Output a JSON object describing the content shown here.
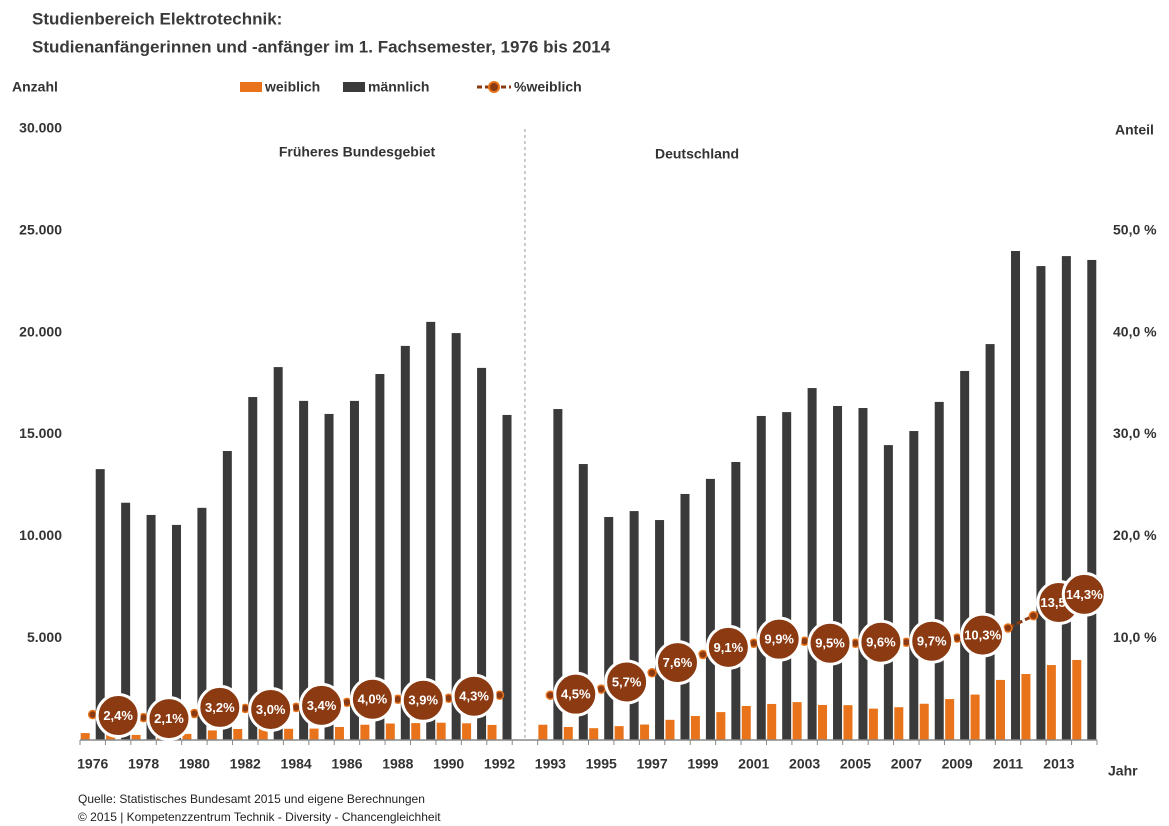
{
  "chart_data": {
    "type": "bar",
    "title": "Studienbereich Elektrotechnik:",
    "subtitle": "Studienanfängerinnen und -anfänger im 1. Fachsemester, 1976 bis 2014",
    "y_label": "Anzahl",
    "y2_label": "Anteil",
    "x_label": "Jahr",
    "annotations": [
      "Früheres Bundesgebiet",
      "Deutschland"
    ],
    "notes": [
      "Quelle: Statistisches Bundesamt 2015 und eigene Berechnungen",
      "© 2015 | Kompetenzzentrum Technik - Diversity - Chancengleichheit"
    ],
    "categories": [
      "1976",
      null,
      "1978",
      null,
      "1980",
      null,
      "1982",
      null,
      "1984",
      null,
      "1986",
      null,
      "1988",
      null,
      "1990",
      null,
      "1992",
      null,
      "1993",
      null,
      "1995",
      null,
      "1997",
      null,
      "1999",
      null,
      "2001",
      null,
      "2003",
      null,
      "2005",
      null,
      "2007",
      null,
      "2009",
      null,
      "2011",
      null,
      "2013",
      null
    ],
    "series": [
      {
        "name": "weiblich",
        "color": "#e8731a",
        "values": [
          340,
          290,
          250,
          230,
          300,
          470,
          540,
          570,
          550,
          560,
          640,
          750,
          810,
          830,
          850,
          820,
          740,
          null,
          750,
          640,
          580,
          680,
          760,
          990,
          1180,
          1370,
          1670,
          1770,
          1860,
          1720,
          1710,
          1540,
          1610,
          1780,
          2010,
          2230,
          2950,
          3240,
          3680,
          3930
        ]
      },
      {
        "name": "männlich",
        "color": "#3a3a3a",
        "values": [
          13300,
          11650,
          11050,
          10560,
          11400,
          14190,
          16840,
          18310,
          16650,
          16010,
          16650,
          17970,
          19350,
          20530,
          19980,
          18270,
          15960,
          null,
          16250,
          13550,
          10950,
          11240,
          10800,
          12080,
          12820,
          13650,
          15910,
          16100,
          17280,
          16400,
          16300,
          14480,
          15170,
          16600,
          18120,
          19440,
          24010,
          23270,
          23760,
          23570
        ]
      },
      {
        "name": "%weiblich",
        "color": "#8b3a12",
        "type": "line",
        "axis": "y2",
        "values": [
          2.5,
          2.4,
          2.2,
          2.1,
          2.6,
          3.2,
          3.1,
          3.0,
          3.2,
          3.4,
          3.7,
          4.0,
          4.0,
          3.9,
          4.1,
          4.3,
          4.4,
          null,
          4.4,
          4.5,
          5.0,
          5.7,
          6.6,
          7.6,
          8.4,
          9.1,
          9.5,
          9.9,
          9.7,
          9.5,
          9.5,
          9.6,
          9.6,
          9.7,
          10.0,
          10.3,
          11.0,
          12.2,
          13.5,
          14.3
        ],
        "value_labels": [
          null,
          "2,4%",
          null,
          "2,1%",
          null,
          "3,2%",
          null,
          "3,0%",
          null,
          "3,4%",
          null,
          "4,0%",
          null,
          "3,9%",
          null,
          "4,3%",
          null,
          null,
          null,
          "4,5%",
          null,
          "5,7%",
          null,
          "7,6%",
          null,
          "9,1%",
          null,
          "9,9%",
          null,
          "9,5%",
          null,
          "9,6%",
          null,
          "9,7%",
          null,
          "10,3%",
          null,
          null,
          "13,5%",
          "14,3%"
        ]
      }
    ],
    "ylim": [
      0,
      30000
    ],
    "yticks": [
      {
        "value": 5000,
        "label": "5.000"
      },
      {
        "value": 10000,
        "label": "10.000"
      },
      {
        "value": 15000,
        "label": "15.000"
      },
      {
        "value": 20000,
        "label": "20.000"
      },
      {
        "value": 25000,
        "label": "25.000"
      },
      {
        "value": 30000,
        "label": "30.000"
      }
    ],
    "y2lim": [
      0,
      60
    ],
    "y2ticks": [
      {
        "value": 10,
        "label": "10,0 %"
      },
      {
        "value": 20,
        "label": "20,0 %"
      },
      {
        "value": 30,
        "label": "30,0 %"
      },
      {
        "value": 40,
        "label": "40,0 %"
      },
      {
        "value": 50,
        "label": "50,0 %"
      }
    ],
    "grid": false,
    "legend": "top"
  }
}
